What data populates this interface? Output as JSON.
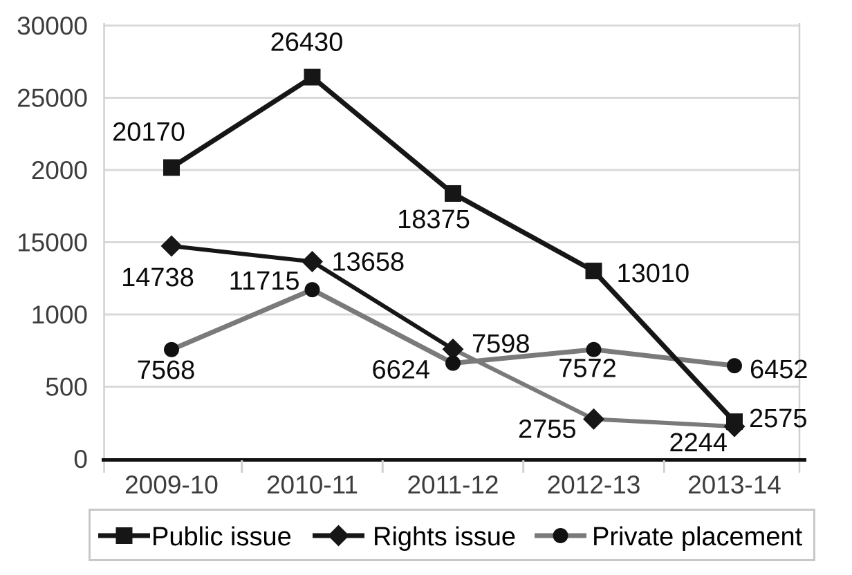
{
  "chart_data": {
    "type": "line",
    "title": "",
    "xlabel": "",
    "ylabel": "",
    "categories": [
      "2009-10",
      "2010-11",
      "2011-12",
      "2012-13",
      "2013-14"
    ],
    "y_tick_labels": [
      "30000",
      "25000",
      "2000",
      "15000",
      "1000",
      "500",
      "0"
    ],
    "y_axis_range": [
      0,
      30000
    ],
    "grid": "horizontal",
    "legend_position": "bottom",
    "series": [
      {
        "name": "Public issue",
        "marker": "square",
        "color": "#161616",
        "values": [
          20170,
          26430,
          18375,
          13010,
          2575
        ],
        "point_labels": [
          "20170",
          "26430",
          "18375",
          "13010",
          "2575"
        ]
      },
      {
        "name": "Rights issue",
        "marker": "diamond",
        "color": "#161616",
        "segment_colors": [
          "#161616",
          "#161616",
          "#7a7a7a",
          "#7a7a7a"
        ],
        "values": [
          14738,
          13658,
          7598,
          2755,
          2244
        ],
        "point_labels": [
          "14738",
          "13658",
          "7598",
          "2755",
          "2244"
        ]
      },
      {
        "name": "Private placement",
        "marker": "circle",
        "color": "#7a7a7a",
        "marker_color": "#111111",
        "values": [
          7568,
          11715,
          6624,
          7572,
          6452
        ],
        "point_labels": [
          "7568",
          "11715",
          "6624",
          "7572",
          "6452"
        ]
      }
    ],
    "colors": {
      "line_black": "#161616",
      "line_gray": "#7a7a7a",
      "gridline": "#d9d9d9",
      "boundary_line": "#d0d0d0",
      "axis_line": "#111111",
      "tick_label": "#3d3d3d",
      "data_label": "#0b0b0b",
      "legend_border": "#c8c8c8",
      "background": "#ffffff"
    }
  }
}
